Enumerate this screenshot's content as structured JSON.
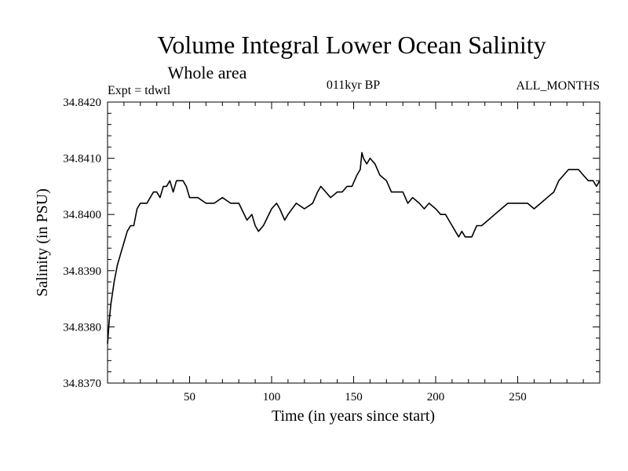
{
  "chart_data": {
    "type": "line",
    "title": "Volume Integral Lower Ocean Salinity",
    "subtitle": "Whole area",
    "annotations": {
      "left": "Expt = tdwtl",
      "center": "011kyr BP",
      "right": "ALL_MONTHS"
    },
    "xlabel": "Time (in years since start)",
    "ylabel": "Salinity (in PSU)",
    "xlim": [
      0,
      300
    ],
    "ylim": [
      34.837,
      34.842
    ],
    "xticks": [
      50,
      100,
      150,
      200,
      250
    ],
    "yticks": [
      34.837,
      34.838,
      34.839,
      34.84,
      34.841,
      34.842
    ],
    "ytick_labels": [
      "34.8370",
      "34.8380",
      "34.8390",
      "34.8400",
      "34.8410",
      "34.8420"
    ],
    "xtick_labels": [
      "50",
      "100",
      "150",
      "200",
      "250"
    ],
    "grid": false,
    "series": [
      {
        "name": "Salinity",
        "x": [
          0,
          1,
          2,
          3,
          4,
          6,
          8,
          10,
          12,
          14,
          16,
          18,
          20,
          22,
          24,
          26,
          28,
          30,
          32,
          34,
          36,
          38,
          40,
          42,
          44,
          46,
          48,
          50,
          55,
          60,
          65,
          70,
          75,
          80,
          85,
          88,
          90,
          92,
          95,
          100,
          103,
          105,
          108,
          110,
          115,
          120,
          125,
          128,
          130,
          133,
          136,
          140,
          143,
          146,
          149,
          152,
          154,
          155,
          156,
          158,
          160,
          163,
          166,
          170,
          173,
          176,
          180,
          183,
          186,
          190,
          193,
          196,
          200,
          203,
          206,
          208,
          210,
          212,
          214,
          216,
          218,
          220,
          222,
          225,
          228,
          232,
          236,
          240,
          244,
          248,
          252,
          256,
          260,
          264,
          268,
          272,
          275,
          278,
          281,
          284,
          287,
          290,
          293,
          296,
          298,
          300
        ],
        "values": [
          34.8377,
          34.8381,
          34.8384,
          34.8386,
          34.8388,
          34.8391,
          34.8393,
          34.8395,
          34.8397,
          34.8398,
          34.8398,
          34.8401,
          34.8402,
          34.8402,
          34.8402,
          34.8403,
          34.8404,
          34.8404,
          34.8403,
          34.8405,
          34.8405,
          34.8406,
          34.8404,
          34.8406,
          34.8406,
          34.8406,
          34.8405,
          34.8403,
          34.8403,
          34.8402,
          34.8402,
          34.8403,
          34.8402,
          34.8402,
          34.8399,
          34.84,
          34.8398,
          34.8397,
          34.8398,
          34.8401,
          34.8402,
          34.8401,
          34.8399,
          34.84,
          34.8402,
          34.8401,
          34.8402,
          34.8404,
          34.8405,
          34.8404,
          34.8403,
          34.8404,
          34.8404,
          34.8405,
          34.8405,
          34.8407,
          34.8408,
          34.8411,
          34.841,
          34.8409,
          34.841,
          34.8409,
          34.8407,
          34.8406,
          34.8404,
          34.8404,
          34.8404,
          34.8402,
          34.8403,
          34.8402,
          34.8401,
          34.8402,
          34.8401,
          34.84,
          34.84,
          34.8399,
          34.8398,
          34.8397,
          34.8396,
          34.8397,
          34.8396,
          34.8396,
          34.8396,
          34.8398,
          34.8398,
          34.8399,
          34.84,
          34.8401,
          34.8402,
          34.8402,
          34.8402,
          34.8402,
          34.8401,
          34.8402,
          34.8403,
          34.8404,
          34.8406,
          34.8407,
          34.8408,
          34.8408,
          34.8408,
          34.8407,
          34.8406,
          34.8406,
          34.8405,
          34.8406
        ]
      }
    ]
  }
}
